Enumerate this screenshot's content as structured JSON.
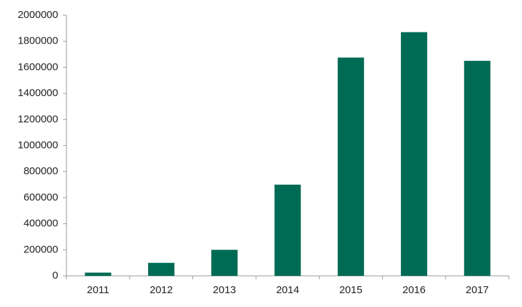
{
  "chart_data": {
    "type": "bar",
    "categories": [
      "2011",
      "2012",
      "2013",
      "2014",
      "2015",
      "2016",
      "2017"
    ],
    "values": [
      25000,
      100000,
      200000,
      700000,
      1675000,
      1870000,
      1650000
    ],
    "color": "#006b54",
    "ylim": [
      0,
      2000000
    ],
    "yticks": [
      0,
      200000,
      400000,
      600000,
      800000,
      1000000,
      1200000,
      1400000,
      1600000,
      1800000,
      2000000
    ]
  }
}
